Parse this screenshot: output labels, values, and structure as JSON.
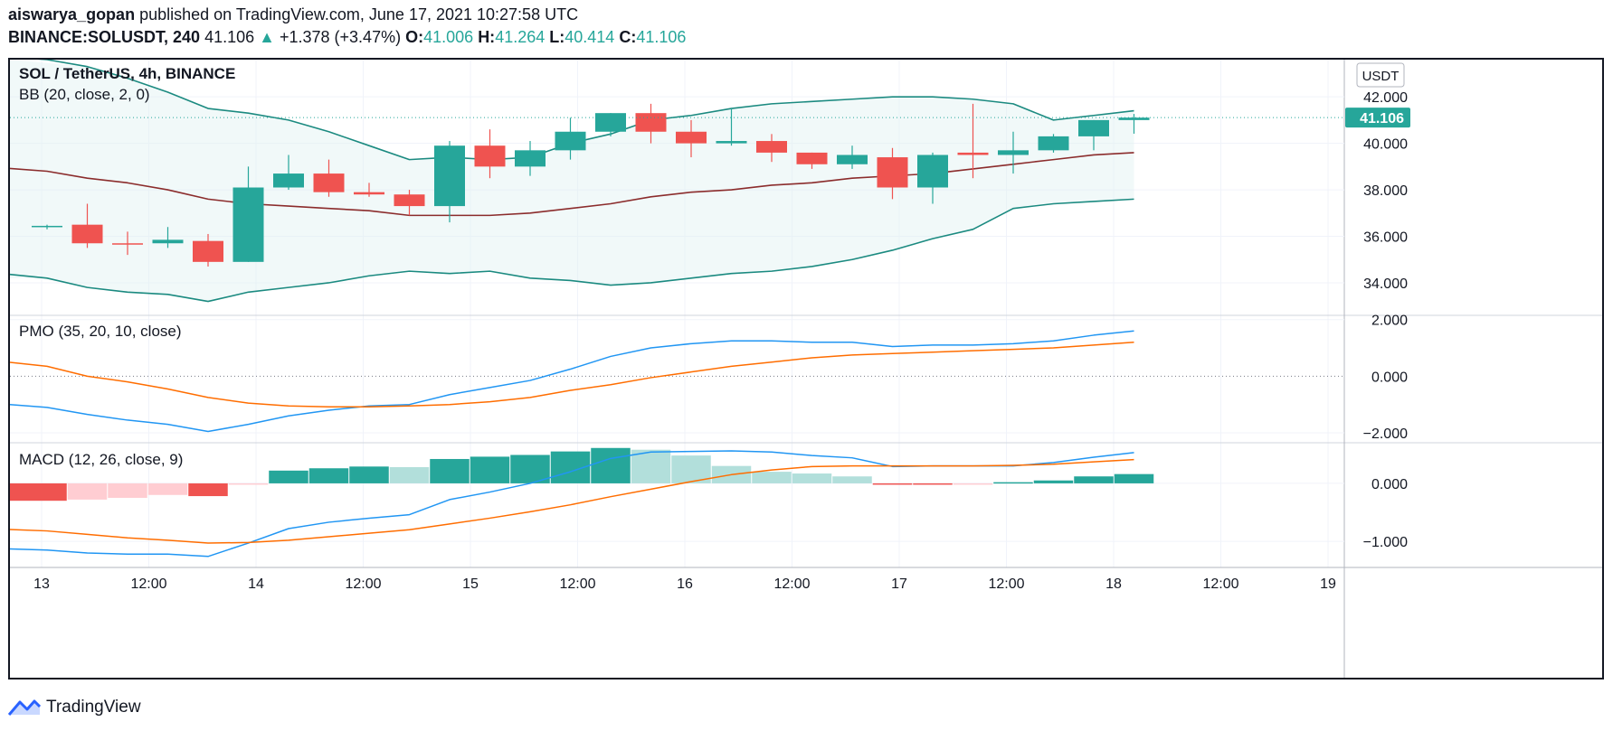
{
  "header": {
    "author": "aiswarya_gopan",
    "published_text": "published on TradingView.com, June 17, 2021 10:27:58 UTC",
    "symbol": "BINANCE:SOLUSDT, 240",
    "last": "41.106",
    "change": "+1.378 (+3.47%)",
    "o_label": "O:",
    "o": "41.006",
    "h_label": "H:",
    "h": "41.264",
    "l_label": "L:",
    "l": "40.414",
    "c_label": "C:",
    "c": "41.106"
  },
  "footer": {
    "brand": "TradingView"
  },
  "colors": {
    "up": "#26a69a",
    "down": "#ef5350",
    "bb_band": "#1b8a80",
    "bb_basis": "#8b2c2c",
    "blue": "#2196f3",
    "orange": "#ff6d00",
    "up_light": "#b2dfdb",
    "down_light": "#ffcdd2"
  },
  "chart_data": [
    {
      "type": "candlestick",
      "title": "SOL / TetherUS, 4h, BINANCE",
      "indicator_label": "BB (20, close, 2, 0)",
      "currency_label": "USDT",
      "last_price_label": "41.106",
      "y_ticks": [
        "42.000",
        "40.000",
        "38.000",
        "36.000",
        "34.000"
      ],
      "ylim": [
        32.6,
        43.6
      ],
      "x_ticks": [
        "13",
        "12:00",
        "14",
        "12:00",
        "15",
        "12:00",
        "16",
        "12:00",
        "17",
        "12:00",
        "18",
        "12:00",
        "19"
      ],
      "candles": [
        {
          "o": 36.4,
          "h": 36.5,
          "l": 36.3,
          "c": 36.45
        },
        {
          "o": 36.5,
          "h": 37.4,
          "l": 35.5,
          "c": 35.7
        },
        {
          "o": 35.7,
          "h": 36.2,
          "l": 35.2,
          "c": 35.65
        },
        {
          "o": 35.7,
          "h": 36.4,
          "l": 35.5,
          "c": 35.85
        },
        {
          "o": 35.8,
          "h": 36.1,
          "l": 34.7,
          "c": 34.9
        },
        {
          "o": 34.9,
          "h": 39.0,
          "l": 34.9,
          "c": 38.1
        },
        {
          "o": 38.1,
          "h": 39.5,
          "l": 38.0,
          "c": 38.7
        },
        {
          "o": 38.7,
          "h": 39.3,
          "l": 37.7,
          "c": 37.9
        },
        {
          "o": 37.9,
          "h": 38.3,
          "l": 37.7,
          "c": 37.8
        },
        {
          "o": 37.8,
          "h": 38.0,
          "l": 36.9,
          "c": 37.3
        },
        {
          "o": 37.3,
          "h": 40.1,
          "l": 36.6,
          "c": 39.9
        },
        {
          "o": 39.9,
          "h": 40.6,
          "l": 38.5,
          "c": 39.0
        },
        {
          "o": 39.0,
          "h": 40.1,
          "l": 38.6,
          "c": 39.7
        },
        {
          "o": 39.7,
          "h": 41.1,
          "l": 39.3,
          "c": 40.5
        },
        {
          "o": 40.5,
          "h": 41.3,
          "l": 40.3,
          "c": 41.3
        },
        {
          "o": 41.3,
          "h": 41.7,
          "l": 40.0,
          "c": 40.5
        },
        {
          "o": 40.5,
          "h": 41.0,
          "l": 39.4,
          "c": 40.0
        },
        {
          "o": 40.0,
          "h": 41.5,
          "l": 39.9,
          "c": 40.1
        },
        {
          "o": 40.1,
          "h": 40.4,
          "l": 39.2,
          "c": 39.6
        },
        {
          "o": 39.6,
          "h": 39.6,
          "l": 38.9,
          "c": 39.1
        },
        {
          "o": 39.1,
          "h": 39.9,
          "l": 38.9,
          "c": 39.5
        },
        {
          "o": 39.4,
          "h": 39.8,
          "l": 37.6,
          "c": 38.1
        },
        {
          "o": 38.1,
          "h": 39.6,
          "l": 37.4,
          "c": 39.5
        },
        {
          "o": 39.6,
          "h": 41.7,
          "l": 38.5,
          "c": 39.5
        },
        {
          "o": 39.5,
          "h": 40.5,
          "l": 38.7,
          "c": 39.7
        },
        {
          "o": 39.7,
          "h": 40.4,
          "l": 39.6,
          "c": 40.3
        },
        {
          "o": 40.3,
          "h": 41.0,
          "l": 39.7,
          "c": 41.0
        },
        {
          "o": 41.0,
          "h": 41.264,
          "l": 40.414,
          "c": 41.106
        }
      ],
      "bb_upper": [
        43.6,
        43.3,
        42.8,
        42.2,
        41.5,
        41.3,
        41.0,
        40.5,
        39.9,
        39.3,
        39.4,
        39.3,
        39.4,
        40.0,
        40.4,
        41.0,
        41.2,
        41.5,
        41.7,
        41.8,
        41.9,
        42.0,
        42.0,
        41.9,
        41.7,
        41.0,
        41.2,
        41.4
      ],
      "bb_basis": [
        38.8,
        38.5,
        38.3,
        38.0,
        37.6,
        37.4,
        37.3,
        37.2,
        37.1,
        36.9,
        36.9,
        36.9,
        37.0,
        37.2,
        37.4,
        37.7,
        37.9,
        38.0,
        38.2,
        38.3,
        38.5,
        38.6,
        38.7,
        38.9,
        39.1,
        39.3,
        39.5,
        39.6
      ],
      "bb_lower": [
        34.2,
        33.8,
        33.6,
        33.5,
        33.2,
        33.6,
        33.8,
        34.0,
        34.3,
        34.5,
        34.4,
        34.5,
        34.2,
        34.1,
        33.9,
        34.0,
        34.2,
        34.4,
        34.5,
        34.7,
        35.0,
        35.4,
        35.9,
        36.3,
        37.2,
        37.4,
        37.5,
        37.6
      ]
    },
    {
      "type": "line",
      "title": "PMO (35, 20, 10, close)",
      "y_ticks": [
        "2.000",
        "0.000",
        "−2.000"
      ],
      "ylim": [
        -2.35,
        2.15
      ],
      "series": [
        {
          "values": [
            -1.1,
            -1.35,
            -1.55,
            -1.7,
            -1.95,
            -1.7,
            -1.4,
            -1.2,
            -1.05,
            -1.0,
            -0.65,
            -0.4,
            -0.15,
            0.25,
            0.7,
            1.0,
            1.15,
            1.25,
            1.25,
            1.2,
            1.2,
            1.05,
            1.1,
            1.1,
            1.15,
            1.25,
            1.45,
            1.6
          ]
        },
        {
          "values": [
            0.35,
            0.0,
            -0.2,
            -0.45,
            -0.75,
            -0.95,
            -1.05,
            -1.08,
            -1.08,
            -1.05,
            -1.0,
            -0.9,
            -0.75,
            -0.5,
            -0.3,
            -0.05,
            0.15,
            0.35,
            0.5,
            0.65,
            0.75,
            0.8,
            0.85,
            0.9,
            0.95,
            1.0,
            1.1,
            1.2
          ]
        }
      ]
    },
    {
      "type": "bar+line",
      "title": "MACD (12, 26, close, 9)",
      "y_ticks": [
        "0.000",
        "−1.000"
      ],
      "ylim": [
        -1.45,
        0.7
      ],
      "histogram": [
        -0.3,
        -0.28,
        -0.25,
        -0.2,
        -0.22,
        -0.02,
        0.22,
        0.26,
        0.29,
        0.28,
        0.42,
        0.46,
        0.49,
        0.55,
        0.61,
        0.58,
        0.48,
        0.3,
        0.2,
        0.17,
        0.12,
        -0.02,
        -0.02,
        -0.01,
        0.02,
        0.05,
        0.12,
        0.16
      ],
      "series": [
        {
          "values": [
            -1.15,
            -1.2,
            -1.22,
            -1.22,
            -1.26,
            -1.03,
            -0.78,
            -0.67,
            -0.6,
            -0.54,
            -0.28,
            -0.15,
            0.0,
            0.2,
            0.43,
            0.54,
            0.55,
            0.56,
            0.54,
            0.48,
            0.44,
            0.29,
            0.3,
            0.3,
            0.3,
            0.36,
            0.45,
            0.53
          ]
        },
        {
          "values": [
            -0.82,
            -0.88,
            -0.94,
            -0.98,
            -1.03,
            -1.02,
            -0.98,
            -0.92,
            -0.86,
            -0.8,
            -0.7,
            -0.6,
            -0.49,
            -0.37,
            -0.23,
            -0.1,
            0.03,
            0.15,
            0.23,
            0.29,
            0.3,
            0.3,
            0.3,
            0.3,
            0.31,
            0.33,
            0.37,
            0.41
          ]
        }
      ]
    }
  ]
}
